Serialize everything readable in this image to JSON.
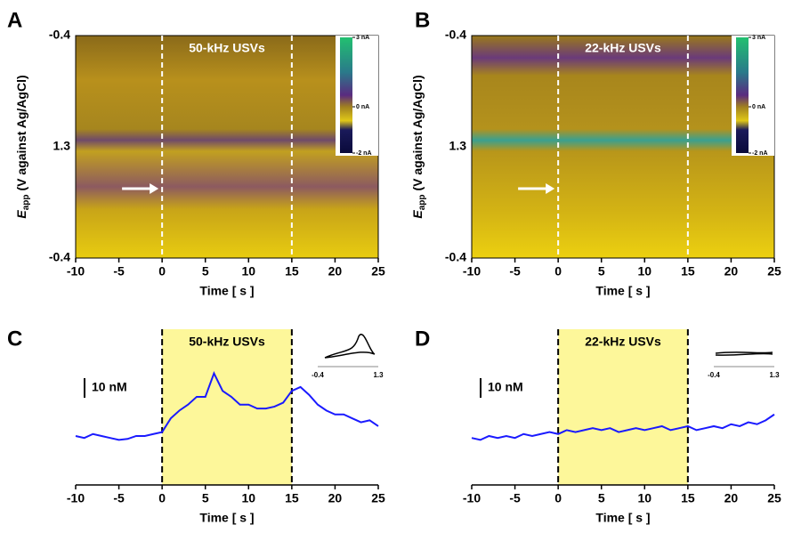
{
  "chart_data": [
    {
      "type": "heatmap",
      "panel_label": "A",
      "title": "50-kHz USVs",
      "xlim": [
        -10,
        25
      ],
      "xticks": [
        -10,
        -5,
        0,
        5,
        10,
        15,
        20,
        25
      ],
      "xlabel": "Time [ s ]",
      "ylabel": {
        "symbol": "E",
        "subscript": "app",
        "text": "(V against Ag/AgCl)"
      },
      "ylabels": [
        "-0.4",
        "1.3",
        "-0.4"
      ],
      "colorbar": {
        "lim": [
          -2,
          3
        ],
        "ticks": [
          {
            "value": 3,
            "label": "3 nA"
          },
          {
            "value": 0,
            "label": "0 nA"
          },
          {
            "value": -2,
            "label": "-2 nA"
          }
        ]
      },
      "stimulus": [
        0,
        15
      ]
    },
    {
      "type": "heatmap",
      "panel_label": "B",
      "title": "22-kHz USVs",
      "xlim": [
        -10,
        25
      ],
      "xticks": [
        -10,
        -5,
        0,
        5,
        10,
        15,
        20,
        25
      ],
      "xlabel": "Time [ s ]",
      "ylabel": {
        "symbol": "E",
        "subscript": "app",
        "text": "(V against Ag/AgCl)"
      },
      "ylabels": [
        "-0.4",
        "1.3",
        "-0.4"
      ],
      "colorbar": {
        "lim": [
          -2,
          3
        ],
        "ticks": [
          {
            "value": 3,
            "label": "3 nA"
          },
          {
            "value": 0,
            "label": "0 nA"
          },
          {
            "value": -2,
            "label": "-2 nA"
          }
        ]
      },
      "stimulus": [
        0,
        15
      ]
    },
    {
      "type": "line",
      "panel_label": "C",
      "title": "50-kHz USVs",
      "color": "#1a1aff",
      "x": [
        -10,
        -9,
        -8,
        -7,
        -6,
        -5,
        -4,
        -3,
        -2,
        -1,
        0,
        1,
        2,
        3,
        4,
        5,
        6,
        7,
        8,
        9,
        10,
        11,
        12,
        13,
        14,
        15,
        16,
        17,
        18,
        19,
        20,
        21,
        22,
        23,
        24,
        25
      ],
      "values": [
        1,
        0,
        2,
        1,
        0,
        -1,
        -0.5,
        1,
        1,
        2,
        3,
        10,
        14,
        17,
        21,
        21,
        33,
        24,
        21,
        17,
        17,
        15,
        15,
        16,
        18,
        24,
        26,
        22,
        17,
        14,
        12,
        12,
        10,
        8,
        9,
        6
      ],
      "xlim": [
        -10,
        25
      ],
      "xticks": [
        -10,
        -5,
        0,
        5,
        10,
        15,
        20,
        25
      ],
      "xlabel": "Time [ s ]",
      "ylim": [
        -24,
        55.5
      ],
      "scale_bar": {
        "value": 10,
        "label": "10 nM"
      },
      "inset_ticks": [
        "-0.4",
        "1.3"
      ],
      "stimulus": [
        0,
        15
      ]
    },
    {
      "type": "line",
      "panel_label": "D",
      "title": "22-kHz USVs",
      "color": "#1a1aff",
      "x": [
        -10,
        -9,
        -8,
        -7,
        -6,
        -5,
        -4,
        -3,
        -2,
        -1,
        0,
        1,
        2,
        3,
        4,
        5,
        6,
        7,
        8,
        9,
        10,
        11,
        12,
        13,
        14,
        15,
        16,
        17,
        18,
        19,
        20,
        21,
        22,
        23,
        24,
        25
      ],
      "values": [
        0,
        -1,
        1,
        0,
        1,
        0,
        2,
        1,
        2,
        3,
        2,
        4,
        3,
        4,
        5,
        4,
        5,
        3,
        4,
        5,
        4,
        5,
        6,
        4,
        5,
        6,
        4,
        5,
        6,
        5,
        7,
        6,
        8,
        7,
        9,
        12
      ],
      "xlim": [
        -10,
        25
      ],
      "xticks": [
        -10,
        -5,
        0,
        5,
        10,
        15,
        20,
        25
      ],
      "xlabel": "Time [ s ]",
      "ylim": [
        -24,
        55.5
      ],
      "scale_bar": {
        "value": 10,
        "label": "10 nM"
      },
      "inset_ticks": [
        "-0.4",
        "1.3"
      ],
      "stimulus": [
        0,
        15
      ]
    }
  ]
}
